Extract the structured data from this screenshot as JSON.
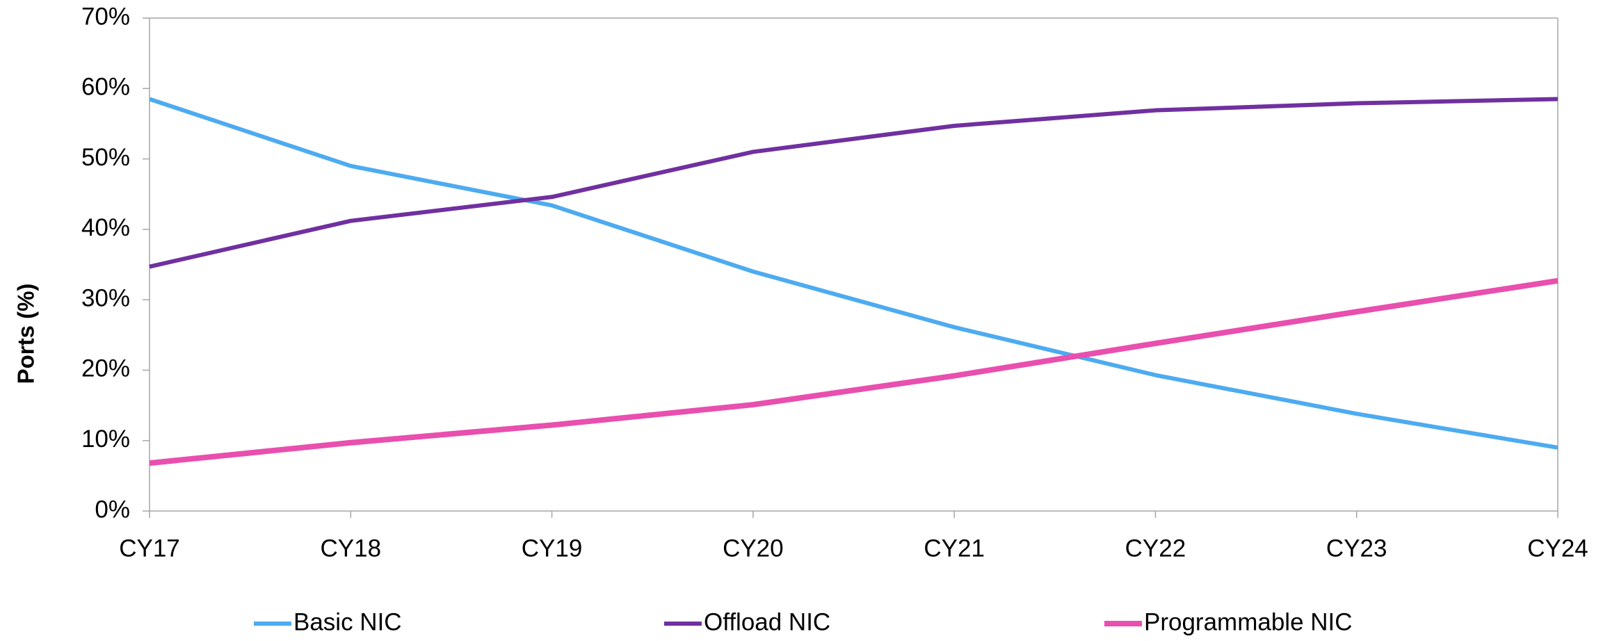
{
  "chart_data": {
    "type": "line",
    "y_label": "Ports (%)",
    "categories": [
      "CY17",
      "CY18",
      "CY19",
      "CY20",
      "CY21",
      "CY22",
      "CY23",
      "CY24"
    ],
    "series": [
      {
        "name": "Basic NIC",
        "color": "#4dabf0",
        "values": [
          58.5,
          49,
          43.4,
          34,
          26.1,
          19.3,
          13.8,
          9.0
        ]
      },
      {
        "name": "Offload NIC",
        "color": "#7030a0",
        "values": [
          34.7,
          41.2,
          44.6,
          51,
          54.7,
          56.9,
          57.9,
          58.5
        ]
      },
      {
        "name": "Programmable NIC",
        "color": "#e84fae",
        "values": [
          6.8,
          9.7,
          12.2,
          15.1,
          19.2,
          23.8,
          28.3,
          32.7
        ]
      }
    ],
    "ylim": [
      0,
      70
    ],
    "yticks": [
      {
        "value": 0,
        "label": "0%"
      },
      {
        "value": 10,
        "label": "10%"
      },
      {
        "value": 20,
        "label": "20%"
      },
      {
        "value": 30,
        "label": "30%"
      },
      {
        "value": 40,
        "label": "40%"
      },
      {
        "value": 50,
        "label": "50%"
      },
      {
        "value": 60,
        "label": "60%"
      },
      {
        "value": 70,
        "label": "70%"
      }
    ],
    "legend": "bottom"
  }
}
